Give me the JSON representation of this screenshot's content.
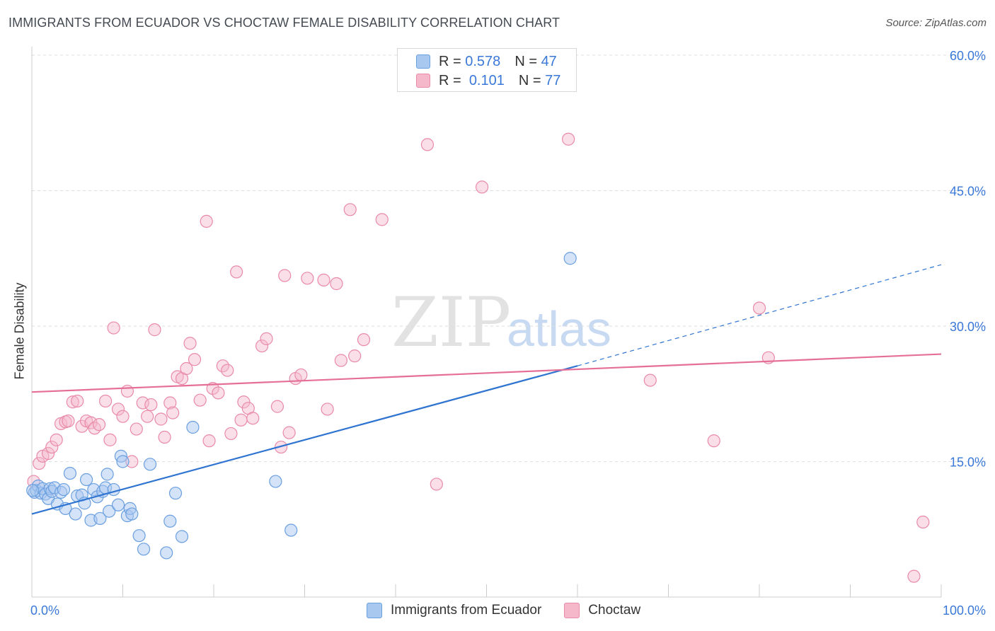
{
  "header": {
    "title": "IMMIGRANTS FROM ECUADOR VS CHOCTAW FEMALE DISABILITY CORRELATION CHART",
    "source": "Source: ZipAtlas.com"
  },
  "legend": {
    "r_label": "R =",
    "n_label": "N =",
    "series1": {
      "r": "0.578",
      "n": "47"
    },
    "series2": {
      "r": "0.101",
      "n": "77"
    }
  },
  "watermark": {
    "zip": "ZIP",
    "atlas": "atlas"
  },
  "colors": {
    "blue_fill": "#a9c8f0",
    "blue_stroke": "#6a9fe0",
    "blue_line": "#2f74d0",
    "pink_fill": "#f5b8cb",
    "pink_stroke": "#e98aa8",
    "pink_line": "#e56f98",
    "tick_label": "#3a78d8",
    "grid": "#dddddd"
  },
  "chart_data": {
    "type": "scatter",
    "title": "IMMIGRANTS FROM ECUADOR VS CHOCTAW FEMALE DISABILITY CORRELATION CHART",
    "xlabel": "",
    "ylabel": "Female Disability",
    "xlim": [
      0,
      100
    ],
    "ylim": [
      0,
      60
    ],
    "x_tick_labels": [
      "0.0%",
      "100.0%"
    ],
    "y_ticks": [
      15,
      30,
      45,
      60
    ],
    "y_tick_labels": [
      "15.0%",
      "30.0%",
      "45.0%",
      "60.0%"
    ],
    "grid": true,
    "legend_position": "top-center",
    "series": [
      {
        "name": "Immigrants from Ecuador",
        "color": "#6a9fe0",
        "points": [
          [
            0.3,
            11.6
          ],
          [
            0.5,
            11.8
          ],
          [
            0.7,
            12.3
          ],
          [
            1.0,
            11.5
          ],
          [
            1.2,
            12.0
          ],
          [
            1.5,
            11.4
          ],
          [
            1.8,
            10.9
          ],
          [
            2.0,
            12.0
          ],
          [
            2.2,
            11.7
          ],
          [
            2.5,
            12.1
          ],
          [
            2.8,
            10.3
          ],
          [
            3.2,
            11.6
          ],
          [
            3.5,
            11.9
          ],
          [
            3.7,
            9.8
          ],
          [
            4.2,
            13.7
          ],
          [
            4.8,
            9.2
          ],
          [
            5.0,
            11.2
          ],
          [
            5.5,
            11.3
          ],
          [
            5.8,
            10.4
          ],
          [
            6.0,
            13.0
          ],
          [
            6.5,
            8.5
          ],
          [
            6.8,
            11.9
          ],
          [
            7.2,
            11.1
          ],
          [
            7.5,
            8.7
          ],
          [
            7.8,
            11.7
          ],
          [
            8.1,
            12.1
          ],
          [
            8.3,
            13.6
          ],
          [
            8.5,
            9.5
          ],
          [
            9.0,
            11.9
          ],
          [
            9.5,
            10.2
          ],
          [
            9.8,
            15.6
          ],
          [
            10.0,
            15.0
          ],
          [
            10.5,
            9.0
          ],
          [
            10.8,
            9.8
          ],
          [
            11.0,
            9.2
          ],
          [
            11.8,
            6.8
          ],
          [
            12.3,
            5.3
          ],
          [
            13.0,
            14.7
          ],
          [
            14.8,
            4.9
          ],
          [
            15.2,
            8.4
          ],
          [
            15.8,
            11.5
          ],
          [
            16.5,
            6.7
          ],
          [
            17.7,
            18.8
          ],
          [
            26.8,
            12.8
          ],
          [
            28.5,
            7.4
          ],
          [
            59.2,
            37.5
          ],
          [
            0.1,
            11.8
          ]
        ],
        "trendline": {
          "x": [
            0,
            60
          ],
          "y": [
            9.2,
            25.6
          ],
          "dashed_extension": {
            "x": [
              60,
              100
            ],
            "y": [
              25.6,
              36.8
            ]
          }
        }
      },
      {
        "name": "Choctaw",
        "color": "#e98aa8",
        "points": [
          [
            0.2,
            12.8
          ],
          [
            0.8,
            14.8
          ],
          [
            1.2,
            15.6
          ],
          [
            1.8,
            15.9
          ],
          [
            2.2,
            16.6
          ],
          [
            2.7,
            17.4
          ],
          [
            3.2,
            19.2
          ],
          [
            3.7,
            19.4
          ],
          [
            4.0,
            19.5
          ],
          [
            4.5,
            21.6
          ],
          [
            5.0,
            21.7
          ],
          [
            5.5,
            18.9
          ],
          [
            6.0,
            19.5
          ],
          [
            6.5,
            19.3
          ],
          [
            6.9,
            18.7
          ],
          [
            7.4,
            19.1
          ],
          [
            8.1,
            21.7
          ],
          [
            8.6,
            17.4
          ],
          [
            9.0,
            29.8
          ],
          [
            9.5,
            20.8
          ],
          [
            10.0,
            20.0
          ],
          [
            10.5,
            22.8
          ],
          [
            11.0,
            15.0
          ],
          [
            11.5,
            18.6
          ],
          [
            12.2,
            21.5
          ],
          [
            12.7,
            20.0
          ],
          [
            13.1,
            21.3
          ],
          [
            13.5,
            29.6
          ],
          [
            14.2,
            19.7
          ],
          [
            14.6,
            17.7
          ],
          [
            15.2,
            21.5
          ],
          [
            15.5,
            20.4
          ],
          [
            16.0,
            24.4
          ],
          [
            16.5,
            24.2
          ],
          [
            17.0,
            25.3
          ],
          [
            17.4,
            28.1
          ],
          [
            17.9,
            26.3
          ],
          [
            18.5,
            21.8
          ],
          [
            19.2,
            41.6
          ],
          [
            19.5,
            17.3
          ],
          [
            19.9,
            23.1
          ],
          [
            20.5,
            22.6
          ],
          [
            21.0,
            25.6
          ],
          [
            21.5,
            25.1
          ],
          [
            21.9,
            18.1
          ],
          [
            22.5,
            36.0
          ],
          [
            23.0,
            19.6
          ],
          [
            23.3,
            21.6
          ],
          [
            23.8,
            20.9
          ],
          [
            24.3,
            19.8
          ],
          [
            25.3,
            27.8
          ],
          [
            25.8,
            28.6
          ],
          [
            27.0,
            21.1
          ],
          [
            27.4,
            16.6
          ],
          [
            27.8,
            35.6
          ],
          [
            28.3,
            18.2
          ],
          [
            29.0,
            24.2
          ],
          [
            29.6,
            24.6
          ],
          [
            30.3,
            35.3
          ],
          [
            32.1,
            35.1
          ],
          [
            32.5,
            20.8
          ],
          [
            33.5,
            34.7
          ],
          [
            34.0,
            26.2
          ],
          [
            35.0,
            42.9
          ],
          [
            35.5,
            26.7
          ],
          [
            36.5,
            28.5
          ],
          [
            38.5,
            41.8
          ],
          [
            43.5,
            50.1
          ],
          [
            44.5,
            12.5
          ],
          [
            49.5,
            45.4
          ],
          [
            59.0,
            50.7
          ],
          [
            68.0,
            24.0
          ],
          [
            75.0,
            17.3
          ],
          [
            80.0,
            32.0
          ],
          [
            81.0,
            26.5
          ],
          [
            98.0,
            8.3
          ],
          [
            97.0,
            2.3
          ]
        ],
        "trendline": {
          "x": [
            0,
            100
          ],
          "y": [
            22.7,
            26.9
          ]
        }
      }
    ]
  }
}
